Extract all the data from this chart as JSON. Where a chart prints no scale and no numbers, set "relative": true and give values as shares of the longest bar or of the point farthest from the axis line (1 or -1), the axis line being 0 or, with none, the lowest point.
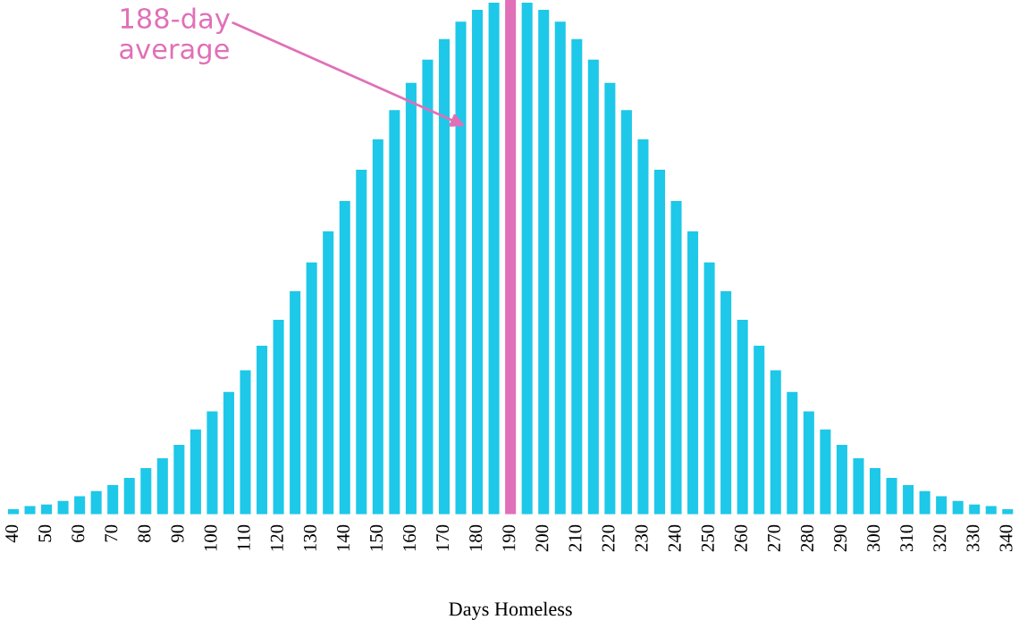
{
  "chart_data": {
    "type": "bar",
    "relative": true,
    "xlabel": "Days Homeless",
    "categories": [
      "40",
      null,
      "50",
      null,
      "60",
      null,
      "70",
      null,
      "80",
      null,
      "90",
      null,
      "100",
      null,
      "110",
      null,
      "120",
      null,
      "130",
      null,
      "140",
      null,
      "150",
      null,
      "160",
      null,
      "170",
      null,
      "180",
      null,
      "190",
      null,
      "200",
      null,
      "210",
      null,
      "220",
      null,
      "230",
      null,
      "240",
      null,
      "250",
      null,
      "260",
      null,
      "270",
      null,
      "280",
      null,
      "290",
      null,
      "300",
      null,
      "310",
      null,
      "320",
      null,
      "330",
      null,
      "340"
    ],
    "values": [
      0.01,
      0.016,
      0.019,
      0.026,
      0.035,
      0.045,
      0.057,
      0.071,
      0.09,
      0.109,
      0.135,
      0.165,
      0.2,
      0.238,
      0.28,
      0.328,
      0.378,
      0.434,
      0.49,
      0.55,
      0.609,
      0.67,
      0.729,
      0.786,
      0.839,
      0.884,
      0.924,
      0.958,
      0.981,
      0.995,
      1,
      0.995,
      0.981,
      0.958,
      0.924,
      0.884,
      0.839,
      0.786,
      0.729,
      0.67,
      0.609,
      0.55,
      0.49,
      0.434,
      0.378,
      0.328,
      0.28,
      0.238,
      0.2,
      0.165,
      0.135,
      0.109,
      0.09,
      0.071,
      0.057,
      0.045,
      0.035,
      0.026,
      0.019,
      0.016,
      0.01
    ],
    "colors": [
      "#1ec8e8",
      "#1ec8e8",
      "#1ec8e8",
      "#1ec8e8",
      "#1ec8e8",
      "#1ec8e8",
      "#1ec8e8",
      "#1ec8e8",
      "#1ec8e8",
      "#1ec8e8",
      "#1ec8e8",
      "#1ec8e8",
      "#1ec8e8",
      "#1ec8e8",
      "#1ec8e8",
      "#1ec8e8",
      "#1ec8e8",
      "#1ec8e8",
      "#1ec8e8",
      "#1ec8e8",
      "#1ec8e8",
      "#1ec8e8",
      "#1ec8e8",
      "#1ec8e8",
      "#1ec8e8",
      "#1ec8e8",
      "#1ec8e8",
      "#1ec8e8",
      "#1ec8e8",
      "#1ec8e8",
      "#e070b8",
      "#1ec8e8",
      "#1ec8e8",
      "#1ec8e8",
      "#1ec8e8",
      "#1ec8e8",
      "#1ec8e8",
      "#1ec8e8",
      "#1ec8e8",
      "#1ec8e8",
      "#1ec8e8",
      "#1ec8e8",
      "#1ec8e8",
      "#1ec8e8",
      "#1ec8e8",
      "#1ec8e8",
      "#1ec8e8",
      "#1ec8e8",
      "#1ec8e8",
      "#1ec8e8",
      "#1ec8e8",
      "#1ec8e8",
      "#1ec8e8",
      "#1ec8e8",
      "#1ec8e8",
      "#1ec8e8",
      "#1ec8e8",
      "#1ec8e8",
      "#1ec8e8",
      "#1ec8e8",
      "#1ec8e8"
    ],
    "annotations": [
      "188-day\naverage"
    ]
  }
}
